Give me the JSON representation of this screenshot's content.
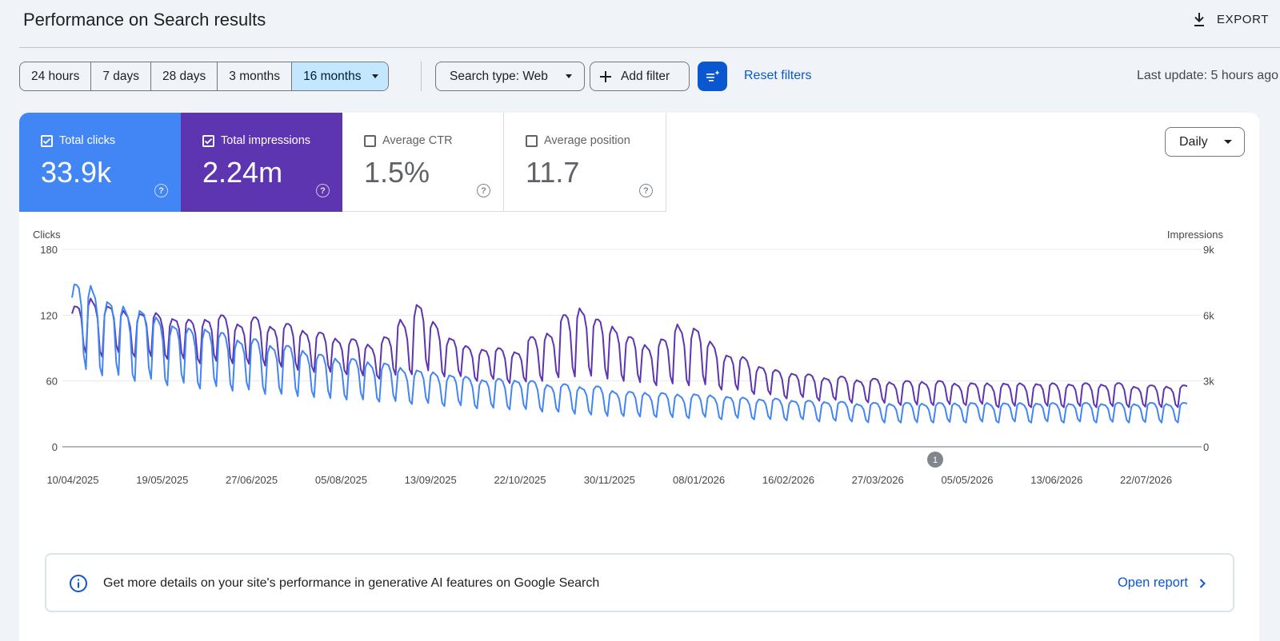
{
  "header": {
    "title": "Performance on Search results",
    "export_label": "EXPORT"
  },
  "toolbar": {
    "ranges": [
      "24 hours",
      "7 days",
      "28 days",
      "3 months",
      "16 months"
    ],
    "selected_range": "16 months",
    "search_type": "Search type: Web",
    "add_filter": "Add filter",
    "reset_filters": "Reset filters",
    "last_update": "Last update: 5 hours ago"
  },
  "metrics": [
    {
      "label": "Total clicks",
      "value": "33.9k",
      "checked": true,
      "color": "#4285f4"
    },
    {
      "label": "Total impressions",
      "value": "2.24m",
      "checked": true,
      "color": "#5e35b1"
    },
    {
      "label": "Average CTR",
      "value": "1.5%",
      "checked": false
    },
    {
      "label": "Average position",
      "value": "11.7",
      "checked": false
    }
  ],
  "granularity": "Daily",
  "annotation_marker": "1",
  "chart_data": {
    "type": "line",
    "x_tick_labels": [
      "10/04/2025",
      "19/05/2025",
      "27/06/2025",
      "05/08/2025",
      "13/09/2025",
      "22/10/2025",
      "30/11/2025",
      "08/01/2026",
      "16/02/2026",
      "27/03/2026",
      "05/05/2026",
      "13/06/2026",
      "22/07/2026"
    ],
    "y_left": {
      "label": "Clicks",
      "ticks": [
        "180",
        "120",
        "60",
        "0"
      ],
      "range": [
        0,
        180
      ]
    },
    "y_right": {
      "label": "Impressions",
      "ticks": [
        "9k",
        "6k",
        "3k",
        "0"
      ],
      "range": [
        0,
        9000
      ]
    },
    "series": [
      {
        "name": "Clicks",
        "axis": "left",
        "color": "#4285f4",
        "weekly_high": [
          148,
          148,
          132,
          128,
          125,
          118,
          112,
          108,
          110,
          104,
          100,
          98,
          95,
          92,
          90,
          84,
          82,
          80,
          78,
          76,
          72,
          70,
          68,
          66,
          64,
          62,
          62,
          62,
          60,
          58,
          57,
          56,
          55,
          52,
          50,
          50,
          49,
          48,
          48,
          47,
          46,
          45,
          44,
          44,
          43,
          42,
          42,
          41,
          40,
          40,
          40,
          40,
          40,
          40,
          40,
          40,
          40,
          40,
          40,
          40,
          40,
          40,
          40,
          40,
          40,
          40,
          40,
          40,
          40,
          40,
          40
        ],
        "weekly_low": [
          68,
          65,
          62,
          60,
          58,
          56,
          55,
          53,
          52,
          51,
          50,
          48,
          47,
          46,
          45,
          44,
          43,
          42,
          41,
          40,
          39,
          38,
          37,
          36,
          35,
          34,
          34,
          33,
          32,
          31,
          30,
          29,
          28,
          28,
          27,
          27,
          26,
          26,
          26,
          25,
          25,
          25,
          24,
          24,
          24,
          23,
          23,
          23,
          22,
          22,
          22,
          22,
          22,
          22,
          22,
          22,
          22,
          22,
          22,
          22,
          22,
          22,
          22,
          22,
          22,
          22,
          22,
          22,
          22,
          22,
          22
        ]
      },
      {
        "name": "Impressions",
        "axis": "right",
        "color": "#5e35b1",
        "weekly_high": [
          6400,
          6800,
          6400,
          6200,
          6100,
          6100,
          5900,
          5800,
          5900,
          6000,
          5700,
          5900,
          5600,
          5600,
          5400,
          5200,
          5000,
          4900,
          4700,
          5000,
          5800,
          6500,
          5700,
          5000,
          4600,
          4500,
          4500,
          4400,
          5000,
          5300,
          6000,
          6500,
          5800,
          5600,
          5000,
          4700,
          4900,
          5600,
          5400,
          4800,
          4200,
          4100,
          3700,
          3500,
          3400,
          3300,
          3200,
          3200,
          3100,
          3100,
          3000,
          3000,
          3000,
          3000,
          2900,
          2900,
          2900,
          2900,
          2900,
          2900,
          2900,
          2900,
          2900,
          2900,
          2900,
          2800,
          2800,
          2800,
          2800,
          2800,
          2800
        ],
        "weekly_low": [
          4200,
          4100,
          4200,
          4100,
          4000,
          4000,
          3900,
          3800,
          3800,
          3800,
          3700,
          3700,
          3600,
          3500,
          3400,
          3400,
          3300,
          3200,
          3100,
          3200,
          3300,
          3300,
          3200,
          3100,
          3000,
          3000,
          2900,
          2900,
          3000,
          3100,
          3200,
          3200,
          3100,
          3000,
          2900,
          2800,
          2800,
          2800,
          2700,
          2600,
          2500,
          2400,
          2300,
          2200,
          2200,
          2100,
          2100,
          2000,
          2000,
          2000,
          1900,
          1900,
          1900,
          1900,
          1900,
          1900,
          1800,
          1800,
          1800,
          1800,
          1800,
          1800,
          1800,
          1800,
          1800,
          1800,
          1800,
          1800,
          1800,
          1800,
          1800
        ]
      }
    ],
    "grid": true
  },
  "ai_banner": {
    "message": "Get more details on your site's performance in generative AI features on Google Search",
    "link": "Open report"
  }
}
